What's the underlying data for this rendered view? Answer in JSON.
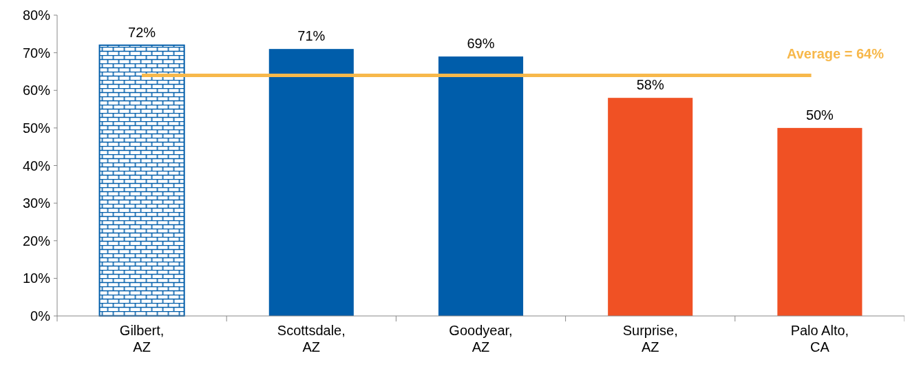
{
  "chart_data": {
    "type": "bar",
    "categories": [
      "Gilbert, AZ",
      "Scottsdale, AZ",
      "Goodyear, AZ",
      "Surprise, AZ",
      "Palo Alto, CA"
    ],
    "values": [
      72,
      71,
      69,
      58,
      50
    ],
    "value_labels": [
      "72%",
      "71%",
      "69%",
      "58%",
      "50%"
    ],
    "colors": [
      "#005daa",
      "#005daa",
      "#005daa",
      "#f05124",
      "#f05124"
    ],
    "ylim": [
      0,
      80
    ],
    "yticks": [
      {
        "value": 0,
        "label": "0%"
      },
      {
        "value": 10,
        "label": "10%"
      },
      {
        "value": 20,
        "label": "20%"
      },
      {
        "value": 30,
        "label": "30%"
      },
      {
        "value": 40,
        "label": "40%"
      },
      {
        "value": 50,
        "label": "50%"
      },
      {
        "value": 60,
        "label": "60%"
      },
      {
        "value": 70,
        "label": "70%"
      },
      {
        "value": 80,
        "label": "80%"
      }
    ],
    "ref_lines": [
      {
        "axis": "y",
        "value": 64,
        "label": "Average = 64%",
        "color": "#f7b84b"
      }
    ],
    "grid": false
  }
}
